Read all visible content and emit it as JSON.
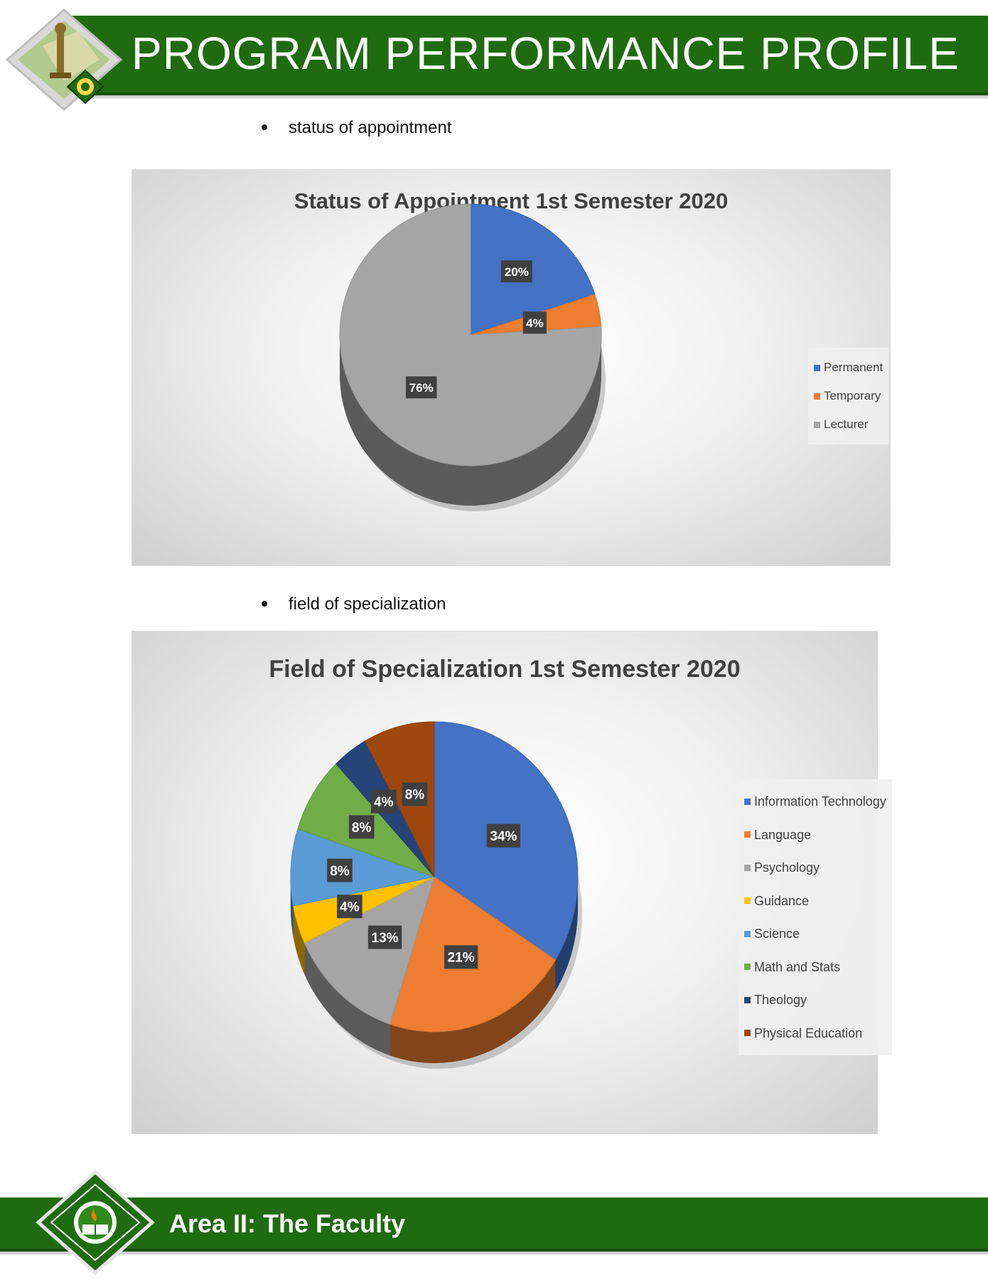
{
  "header": {
    "title": "PROGRAM PERFORMANCE PROFILE"
  },
  "bullets": {
    "first": "status of appointment",
    "second": "field of specialization"
  },
  "footer": {
    "text": "Area II: The Faculty"
  },
  "colors": {
    "brand_green": "#1f6b0f",
    "blue": "#4472c4",
    "orange": "#ed7d31",
    "gray": "#a5a5a5",
    "gold": "#ffc000",
    "lightblue": "#5b9bd5",
    "green": "#70ad47",
    "navy": "#264478",
    "brown": "#9e480e"
  },
  "chart_data": [
    {
      "type": "pie",
      "title": "Status of Appointment 1st Semester 2020",
      "legend_position": "right",
      "slices": [
        {
          "name": "Permanent",
          "value": 20,
          "label": "20%",
          "color": "#4472c4"
        },
        {
          "name": "Temporary",
          "value": 4,
          "label": "4%",
          "color": "#ed7d31"
        },
        {
          "name": "Lecturer",
          "value": 76,
          "label": "76%",
          "color": "#a5a5a5"
        }
      ]
    },
    {
      "type": "pie",
      "title": "Field of Specialization 1st Semester 2020",
      "legend_position": "right",
      "slices": [
        {
          "name": "Information Technology",
          "value": 34,
          "label": "34%",
          "color": "#4472c4"
        },
        {
          "name": "Language",
          "value": 21,
          "label": "21%",
          "color": "#ed7d31"
        },
        {
          "name": "Psychology",
          "value": 13,
          "label": "13%",
          "color": "#a5a5a5"
        },
        {
          "name": "Guidance",
          "value": 4,
          "label": "4%",
          "color": "#ffc000"
        },
        {
          "name": "Science",
          "value": 8,
          "label": "8%",
          "color": "#5b9bd5"
        },
        {
          "name": "Math and Stats",
          "value": 8,
          "label": "8%",
          "color": "#70ad47"
        },
        {
          "name": "Theology",
          "value": 4,
          "label": "4%",
          "color": "#264478"
        },
        {
          "name": "Physical Education",
          "value": 8,
          "label": "8%",
          "color": "#9e480e"
        }
      ]
    }
  ]
}
